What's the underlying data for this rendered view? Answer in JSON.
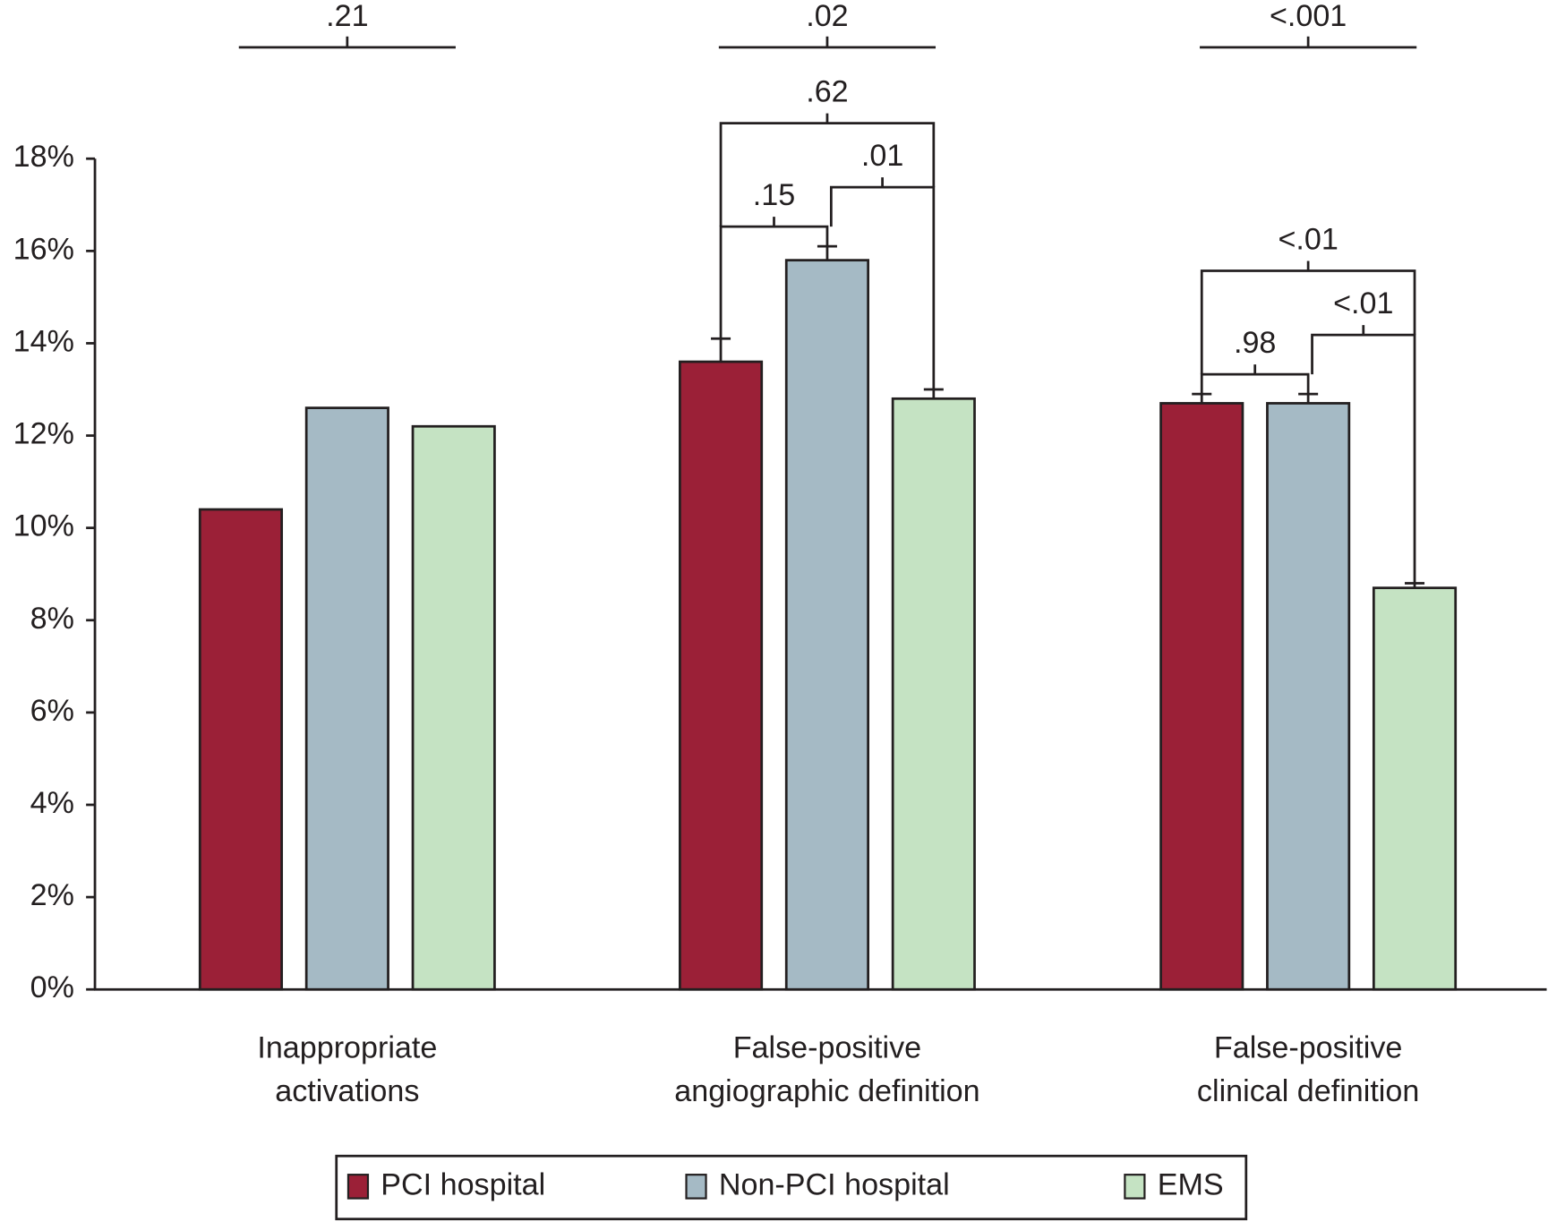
{
  "chart_data": {
    "type": "bar",
    "categories": [
      [
        "Inappropriate",
        "activations"
      ],
      [
        "False-positive",
        "angiographic definition"
      ],
      [
        "False-positive",
        "clinical definition"
      ]
    ],
    "series": [
      {
        "name": "PCI hospital",
        "color": "#9b2037",
        "values": [
          10.4,
          13.6,
          12.7
        ],
        "errors": [
          null,
          0.5,
          0.2
        ]
      },
      {
        "name": "Non-PCI hospital",
        "color": "#a5bac5",
        "values": [
          12.6,
          15.8,
          12.7
        ],
        "errors": [
          null,
          0.3,
          0.2
        ]
      },
      {
        "name": "EMS",
        "color": "#c5e3c3",
        "values": [
          12.2,
          12.8,
          8.7
        ],
        "errors": [
          null,
          0.2,
          0.1
        ]
      }
    ],
    "overall_p": [
      ".21",
      ".02",
      "<.001"
    ],
    "pairwise_p": [
      null,
      [
        ".15",
        ".01",
        ".62"
      ],
      [
        ".98",
        "<.01",
        "<.01"
      ]
    ],
    "ylim": [
      0,
      18
    ],
    "yticks": [
      {
        "value": 0,
        "label": "0%"
      },
      {
        "value": 2,
        "label": "2%"
      },
      {
        "value": 4,
        "label": "4%"
      },
      {
        "value": 6,
        "label": "6%"
      },
      {
        "value": 8,
        "label": "8%"
      },
      {
        "value": 10,
        "label": "10%"
      },
      {
        "value": 12,
        "label": "12%"
      },
      {
        "value": 14,
        "label": "14%"
      },
      {
        "value": 16,
        "label": "16%"
      },
      {
        "value": 18,
        "label": "18%"
      }
    ],
    "legend": "bottom"
  }
}
